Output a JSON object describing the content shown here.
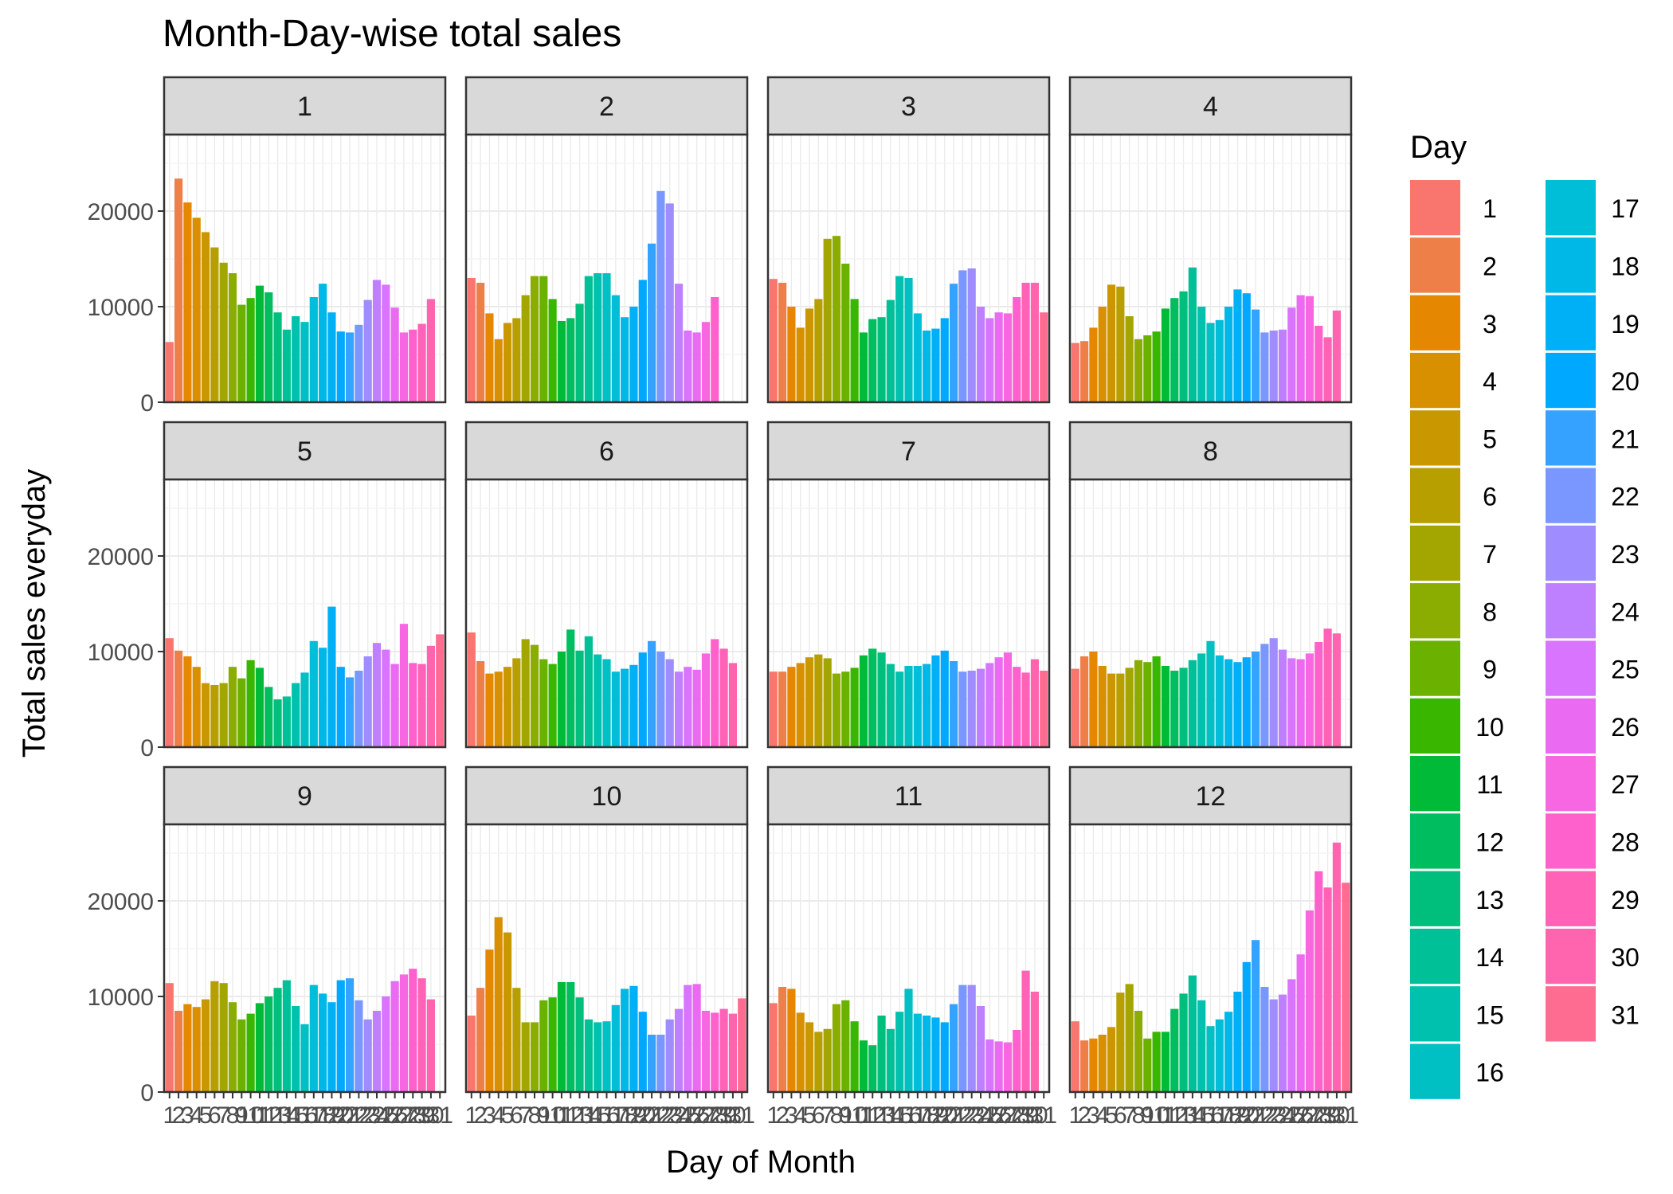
{
  "chart_data": {
    "type": "bar",
    "title": "Month-Day-wise total sales",
    "xlabel": "Day of Month",
    "ylabel": "Total sales everyday",
    "legend_title": "Day",
    "legend_position": "right",
    "grid": true,
    "facets": [
      "1",
      "2",
      "3",
      "4",
      "5",
      "6",
      "7",
      "8",
      "9",
      "10",
      "11",
      "12"
    ],
    "facet_layout": "3 rows x 4 columns",
    "ylim": [
      0,
      28000
    ],
    "y_ticks": [
      0,
      10000,
      20000
    ],
    "y_tick_labels": [
      "0",
      "10000",
      "20000"
    ],
    "x_tick_labels": [
      "1",
      "2",
      "3",
      "4",
      "5",
      "6",
      "7",
      "8",
      "9",
      "10",
      "11",
      "12",
      "13",
      "14",
      "15",
      "16",
      "17",
      "18",
      "19",
      "20",
      "21",
      "22",
      "23",
      "24",
      "25",
      "26",
      "27",
      "28",
      "29",
      "30",
      "31"
    ],
    "legend_items": [
      "1",
      "2",
      "3",
      "4",
      "5",
      "6",
      "7",
      "8",
      "9",
      "10",
      "11",
      "12",
      "13",
      "14",
      "15",
      "16",
      "17",
      "18",
      "19",
      "20",
      "21",
      "22",
      "23",
      "24",
      "25",
      "26",
      "27",
      "28",
      "29",
      "30",
      "31"
    ],
    "day_colors": [
      "#F8766D",
      "#EF7F49",
      "#E58700",
      "#D89000",
      "#C99800",
      "#B79F00",
      "#A3A500",
      "#8BAC00",
      "#6BB100",
      "#39B600",
      "#00BA38",
      "#00BD5F",
      "#00BF7D",
      "#00C097",
      "#00C1AE",
      "#00C0C4",
      "#00BDD8",
      "#00B8E7",
      "#00B0F6",
      "#00A9FF",
      "#35A2FF",
      "#7A97FF",
      "#9F8CFF",
      "#BF80FF",
      "#D874FD",
      "#EA6AF1",
      "#F767E1",
      "#FF61CC",
      "#FF62B6",
      "#FF65AE",
      "#FF6C91"
    ],
    "series": [
      {
        "name": "1",
        "days": [
          1,
          2,
          3,
          4,
          5,
          6,
          7,
          8,
          9,
          10,
          11,
          12,
          13,
          14,
          15,
          16,
          17,
          18,
          19,
          20,
          21,
          22,
          23,
          24,
          25,
          26,
          27,
          28,
          29,
          30,
          31
        ],
        "values": [
          6300,
          23400,
          20900,
          19300,
          17800,
          16200,
          14600,
          13500,
          10200,
          10900,
          12200,
          11500,
          9400,
          7600,
          9000,
          8400,
          11000,
          12400,
          9400,
          7400,
          7300,
          8100,
          10700,
          12800,
          12300,
          9900,
          7300,
          7600,
          8200,
          10800,
          null
        ]
      },
      {
        "name": "2",
        "days": [
          1,
          2,
          3,
          4,
          5,
          6,
          7,
          8,
          9,
          10,
          11,
          12,
          13,
          14,
          15,
          16,
          17,
          18,
          19,
          20,
          21,
          22,
          23,
          24,
          25,
          26,
          27,
          28,
          29,
          30,
          31
        ],
        "values": [
          13000,
          12500,
          9300,
          6600,
          8300,
          8800,
          11200,
          13200,
          13200,
          10800,
          8500,
          8800,
          10300,
          13200,
          13500,
          13500,
          11200,
          8900,
          10000,
          12800,
          16600,
          22100,
          20800,
          12400,
          7500,
          7300,
          8400,
          11000,
          null,
          null,
          null
        ]
      },
      {
        "name": "3",
        "days": [
          1,
          2,
          3,
          4,
          5,
          6,
          7,
          8,
          9,
          10,
          11,
          12,
          13,
          14,
          15,
          16,
          17,
          18,
          19,
          20,
          21,
          22,
          23,
          24,
          25,
          26,
          27,
          28,
          29,
          30,
          31
        ],
        "values": [
          12900,
          12500,
          10000,
          7800,
          9800,
          10800,
          17100,
          17400,
          14500,
          10800,
          7300,
          8700,
          8900,
          10700,
          13200,
          13000,
          9300,
          7500,
          7700,
          8800,
          12400,
          13800,
          14000,
          10000,
          8800,
          9400,
          9300,
          11000,
          12500,
          12500,
          9400
        ]
      },
      {
        "name": "4",
        "days": [
          1,
          2,
          3,
          4,
          5,
          6,
          7,
          8,
          9,
          10,
          11,
          12,
          13,
          14,
          15,
          16,
          17,
          18,
          19,
          20,
          21,
          22,
          23,
          24,
          25,
          26,
          27,
          28,
          29,
          30,
          31
        ],
        "values": [
          6200,
          6400,
          7800,
          10000,
          12300,
          12100,
          9000,
          6600,
          7000,
          7400,
          9800,
          10900,
          11600,
          14100,
          10000,
          8300,
          8600,
          10000,
          11800,
          11400,
          9700,
          7300,
          7500,
          7600,
          9900,
          11200,
          11100,
          8000,
          6800,
          9600,
          null
        ]
      },
      {
        "name": "5",
        "days": [
          1,
          2,
          3,
          4,
          5,
          6,
          7,
          8,
          9,
          10,
          11,
          12,
          13,
          14,
          15,
          16,
          17,
          18,
          19,
          20,
          21,
          22,
          23,
          24,
          25,
          26,
          27,
          28,
          29,
          30,
          31
        ],
        "values": [
          11400,
          10100,
          9500,
          8400,
          6700,
          6500,
          6700,
          8400,
          7200,
          9100,
          8300,
          6300,
          5000,
          5300,
          6700,
          7800,
          11100,
          10400,
          14700,
          8400,
          7300,
          8000,
          9500,
          10900,
          10200,
          8700,
          12900,
          8800,
          8700,
          10600,
          11800
        ]
      },
      {
        "name": "6",
        "days": [
          1,
          2,
          3,
          4,
          5,
          6,
          7,
          8,
          9,
          10,
          11,
          12,
          13,
          14,
          15,
          16,
          17,
          18,
          19,
          20,
          21,
          22,
          23,
          24,
          25,
          26,
          27,
          28,
          29,
          30,
          31
        ],
        "values": [
          12000,
          9000,
          7700,
          7900,
          8400,
          9300,
          11300,
          10700,
          9200,
          8700,
          10000,
          12300,
          10100,
          11600,
          9700,
          9200,
          7900,
          8200,
          8600,
          9900,
          11100,
          10000,
          9200,
          7900,
          8400,
          8100,
          9800,
          11300,
          10300,
          8800,
          null
        ]
      },
      {
        "name": "7",
        "days": [
          1,
          2,
          3,
          4,
          5,
          6,
          7,
          8,
          9,
          10,
          11,
          12,
          13,
          14,
          15,
          16,
          17,
          18,
          19,
          20,
          21,
          22,
          23,
          24,
          25,
          26,
          27,
          28,
          29,
          30,
          31
        ],
        "values": [
          7900,
          7900,
          8400,
          8800,
          9400,
          9700,
          9300,
          7700,
          7900,
          8300,
          9600,
          10300,
          9900,
          8700,
          7900,
          8500,
          8500,
          8700,
          9600,
          10100,
          9000,
          7900,
          8000,
          8200,
          8800,
          9400,
          9900,
          8400,
          7800,
          9200,
          8000
        ]
      },
      {
        "name": "8",
        "days": [
          1,
          2,
          3,
          4,
          5,
          6,
          7,
          8,
          9,
          10,
          11,
          12,
          13,
          14,
          15,
          16,
          17,
          18,
          19,
          20,
          21,
          22,
          23,
          24,
          25,
          26,
          27,
          28,
          29,
          30,
          31
        ],
        "values": [
          8200,
          9500,
          10000,
          8500,
          7700,
          7700,
          8300,
          9100,
          8900,
          9500,
          8500,
          8000,
          8300,
          9100,
          9800,
          11100,
          9600,
          9200,
          8900,
          9400,
          10000,
          10800,
          11400,
          10200,
          9300,
          9200,
          9800,
          11000,
          12400,
          11900,
          null
        ]
      },
      {
        "name": "9",
        "days": [
          1,
          2,
          3,
          4,
          5,
          6,
          7,
          8,
          9,
          10,
          11,
          12,
          13,
          14,
          15,
          16,
          17,
          18,
          19,
          20,
          21,
          22,
          23,
          24,
          25,
          26,
          27,
          28,
          29,
          30,
          31
        ],
        "values": [
          11400,
          8500,
          9200,
          8900,
          9700,
          11600,
          11400,
          9400,
          7600,
          8200,
          9300,
          10000,
          10900,
          11700,
          9000,
          7100,
          11200,
          10300,
          9400,
          11700,
          11900,
          9600,
          7600,
          8500,
          10000,
          11600,
          12300,
          12900,
          11900,
          9700,
          null
        ]
      },
      {
        "name": "10",
        "days": [
          1,
          2,
          3,
          4,
          5,
          6,
          7,
          8,
          9,
          10,
          11,
          12,
          13,
          14,
          15,
          16,
          17,
          18,
          19,
          20,
          21,
          22,
          23,
          24,
          25,
          26,
          27,
          28,
          29,
          30,
          31
        ],
        "values": [
          8000,
          10900,
          14900,
          18300,
          16700,
          10900,
          7300,
          7300,
          9600,
          9900,
          11500,
          11500,
          9900,
          7600,
          7300,
          7400,
          9100,
          10800,
          11100,
          8400,
          6000,
          6000,
          7600,
          8700,
          11200,
          11300,
          8500,
          8300,
          8700,
          8200,
          9800
        ]
      },
      {
        "name": "11",
        "days": [
          1,
          2,
          3,
          4,
          5,
          6,
          7,
          8,
          9,
          10,
          11,
          12,
          13,
          14,
          15,
          16,
          17,
          18,
          19,
          20,
          21,
          22,
          23,
          24,
          25,
          26,
          27,
          28,
          29,
          30,
          31
        ],
        "values": [
          9300,
          11000,
          10800,
          8300,
          7300,
          6300,
          6600,
          9200,
          9600,
          7400,
          5400,
          4900,
          8000,
          6600,
          8400,
          10800,
          8200,
          8000,
          7800,
          7300,
          9200,
          11200,
          11200,
          9000,
          5500,
          5300,
          5200,
          6500,
          12700,
          10500,
          null
        ]
      },
      {
        "name": "12",
        "days": [
          1,
          2,
          3,
          4,
          5,
          6,
          7,
          8,
          9,
          10,
          11,
          12,
          13,
          14,
          15,
          16,
          17,
          18,
          19,
          20,
          21,
          22,
          23,
          24,
          25,
          26,
          27,
          28,
          29,
          30,
          31
        ],
        "values": [
          7400,
          5400,
          5600,
          6000,
          6800,
          10400,
          11300,
          8500,
          5600,
          6300,
          6300,
          8700,
          10300,
          12200,
          9600,
          6900,
          7600,
          8400,
          10500,
          13600,
          15900,
          11000,
          9700,
          10200,
          11800,
          14400,
          19000,
          23100,
          21400,
          26100,
          21900
        ]
      }
    ]
  }
}
